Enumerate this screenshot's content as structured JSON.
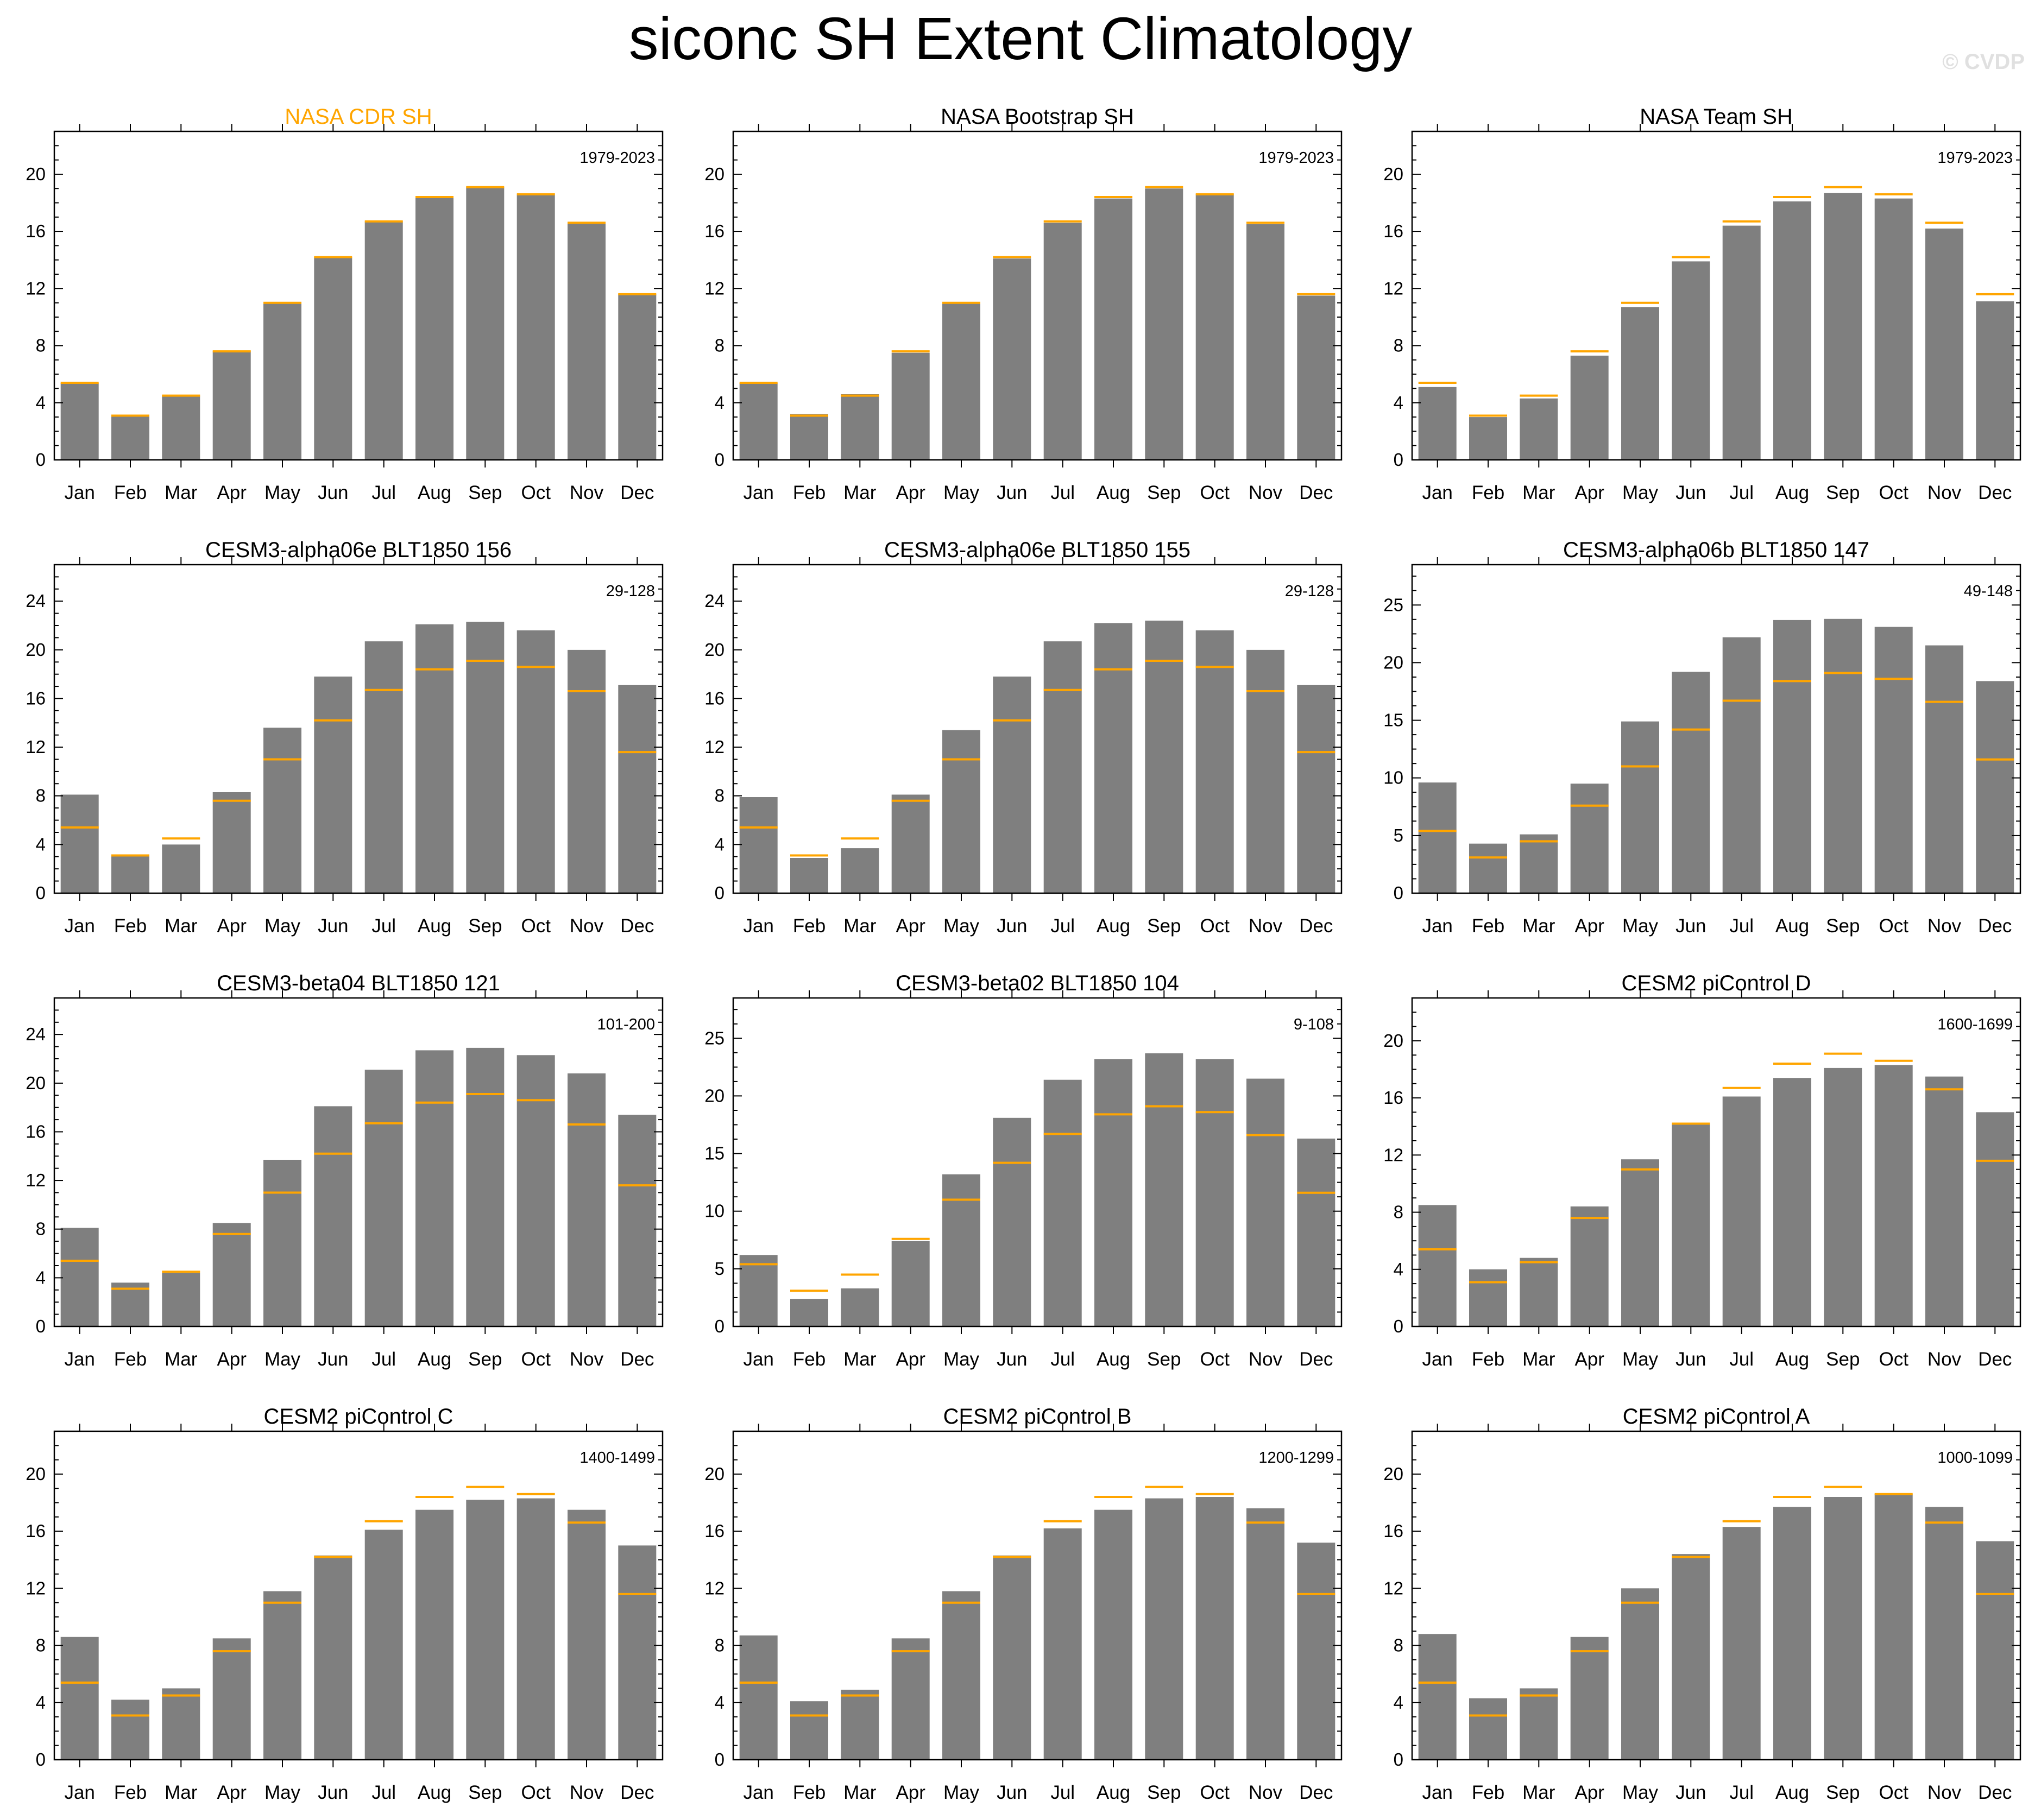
{
  "title": "siconc SH Extent Climatology",
  "watermark": "© CVDP",
  "colors": {
    "bar": "#7f7f7f",
    "reference_line": "#FFA500",
    "reference_title": "#FFA500",
    "axis": "#000000"
  },
  "chart_data": [
    {
      "type": "bar",
      "title": "NASA CDR SH",
      "is_reference": true,
      "period": "1979-2023",
      "categories": [
        "Jan",
        "Feb",
        "Mar",
        "Apr",
        "May",
        "Jun",
        "Jul",
        "Aug",
        "Sep",
        "Oct",
        "Nov",
        "Dec"
      ],
      "values": [
        5.4,
        3.1,
        4.5,
        7.6,
        11.0,
        14.2,
        16.7,
        18.4,
        19.1,
        18.6,
        16.6,
        11.6
      ],
      "ylim": [
        0,
        23
      ],
      "yticks": [
        0,
        4,
        8,
        12,
        16,
        20
      ]
    },
    {
      "type": "bar",
      "title": "NASA Bootstrap SH",
      "period": "1979-2023",
      "categories": [
        "Jan",
        "Feb",
        "Mar",
        "Apr",
        "May",
        "Jun",
        "Jul",
        "Aug",
        "Sep",
        "Oct",
        "Nov",
        "Dec"
      ],
      "values": [
        5.4,
        3.2,
        4.6,
        7.5,
        11.0,
        14.1,
        16.6,
        18.3,
        19.0,
        18.6,
        16.5,
        11.5
      ],
      "ylim": [
        0,
        23
      ],
      "yticks": [
        0,
        4,
        8,
        12,
        16,
        20
      ]
    },
    {
      "type": "bar",
      "title": "NASA Team SH",
      "period": "1979-2023",
      "categories": [
        "Jan",
        "Feb",
        "Mar",
        "Apr",
        "May",
        "Jun",
        "Jul",
        "Aug",
        "Sep",
        "Oct",
        "Nov",
        "Dec"
      ],
      "values": [
        5.1,
        3.0,
        4.3,
        7.3,
        10.7,
        13.9,
        16.4,
        18.1,
        18.7,
        18.3,
        16.2,
        11.1
      ],
      "ylim": [
        0,
        23
      ],
      "yticks": [
        0,
        4,
        8,
        12,
        16,
        20
      ]
    },
    {
      "type": "bar",
      "title": "CESM3-alpha06e BLT1850 156",
      "period": "29-128",
      "categories": [
        "Jan",
        "Feb",
        "Mar",
        "Apr",
        "May",
        "Jun",
        "Jul",
        "Aug",
        "Sep",
        "Oct",
        "Nov",
        "Dec"
      ],
      "values": [
        8.1,
        3.1,
        4.0,
        8.3,
        13.6,
        17.8,
        20.7,
        22.1,
        22.3,
        21.6,
        20.0,
        17.1
      ],
      "ylim": [
        0,
        27
      ],
      "yticks": [
        0,
        4,
        8,
        12,
        16,
        20,
        24
      ]
    },
    {
      "type": "bar",
      "title": "CESM3-alpha06e BLT1850 155",
      "period": "29-128",
      "categories": [
        "Jan",
        "Feb",
        "Mar",
        "Apr",
        "May",
        "Jun",
        "Jul",
        "Aug",
        "Sep",
        "Oct",
        "Nov",
        "Dec"
      ],
      "values": [
        7.9,
        2.9,
        3.7,
        8.1,
        13.4,
        17.8,
        20.7,
        22.2,
        22.4,
        21.6,
        20.0,
        17.1
      ],
      "ylim": [
        0,
        27
      ],
      "yticks": [
        0,
        4,
        8,
        12,
        16,
        20,
        24
      ]
    },
    {
      "type": "bar",
      "title": "CESM3-alpha06b BLT1850 147",
      "period": "49-148",
      "categories": [
        "Jan",
        "Feb",
        "Mar",
        "Apr",
        "May",
        "Jun",
        "Jul",
        "Aug",
        "Sep",
        "Oct",
        "Nov",
        "Dec"
      ],
      "values": [
        9.6,
        4.3,
        5.1,
        9.5,
        14.9,
        19.2,
        22.2,
        23.7,
        23.8,
        23.1,
        21.5,
        18.4
      ],
      "ylim": [
        0,
        28.5
      ],
      "yticks": [
        0,
        5,
        10,
        15,
        20,
        25
      ]
    },
    {
      "type": "bar",
      "title": "CESM3-beta04 BLT1850 121",
      "period": "101-200",
      "categories": [
        "Jan",
        "Feb",
        "Mar",
        "Apr",
        "May",
        "Jun",
        "Jul",
        "Aug",
        "Sep",
        "Oct",
        "Nov",
        "Dec"
      ],
      "values": [
        8.1,
        3.6,
        4.4,
        8.5,
        13.7,
        18.1,
        21.1,
        22.7,
        22.9,
        22.3,
        20.8,
        17.4
      ],
      "ylim": [
        0,
        27
      ],
      "yticks": [
        0,
        4,
        8,
        12,
        16,
        20,
        24
      ]
    },
    {
      "type": "bar",
      "title": "CESM3-beta02 BLT1850 104",
      "period": "9-108",
      "categories": [
        "Jan",
        "Feb",
        "Mar",
        "Apr",
        "May",
        "Jun",
        "Jul",
        "Aug",
        "Sep",
        "Oct",
        "Nov",
        "Dec"
      ],
      "values": [
        6.2,
        2.4,
        3.3,
        7.4,
        13.2,
        18.1,
        21.4,
        23.2,
        23.7,
        23.2,
        21.5,
        16.3
      ],
      "ylim": [
        0,
        28.5
      ],
      "yticks": [
        0,
        5,
        10,
        15,
        20,
        25
      ]
    },
    {
      "type": "bar",
      "title": "CESM2 piControl D",
      "period": "1600-1699",
      "categories": [
        "Jan",
        "Feb",
        "Mar",
        "Apr",
        "May",
        "Jun",
        "Jul",
        "Aug",
        "Sep",
        "Oct",
        "Nov",
        "Dec"
      ],
      "values": [
        8.5,
        4.0,
        4.8,
        8.4,
        11.7,
        14.2,
        16.1,
        17.4,
        18.1,
        18.3,
        17.5,
        15.0
      ],
      "ylim": [
        0,
        23
      ],
      "yticks": [
        0,
        4,
        8,
        12,
        16,
        20
      ]
    },
    {
      "type": "bar",
      "title": "CESM2 piControl C",
      "period": "1400-1499",
      "categories": [
        "Jan",
        "Feb",
        "Mar",
        "Apr",
        "May",
        "Jun",
        "Jul",
        "Aug",
        "Sep",
        "Oct",
        "Nov",
        "Dec"
      ],
      "values": [
        8.6,
        4.2,
        5.0,
        8.5,
        11.8,
        14.3,
        16.1,
        17.5,
        18.2,
        18.3,
        17.5,
        15.0
      ],
      "ylim": [
        0,
        23
      ],
      "yticks": [
        0,
        4,
        8,
        12,
        16,
        20
      ]
    },
    {
      "type": "bar",
      "title": "CESM2 piControl B",
      "period": "1200-1299",
      "categories": [
        "Jan",
        "Feb",
        "Mar",
        "Apr",
        "May",
        "Jun",
        "Jul",
        "Aug",
        "Sep",
        "Oct",
        "Nov",
        "Dec"
      ],
      "values": [
        8.7,
        4.1,
        4.9,
        8.5,
        11.8,
        14.3,
        16.2,
        17.5,
        18.3,
        18.4,
        17.6,
        15.2
      ],
      "ylim": [
        0,
        23
      ],
      "yticks": [
        0,
        4,
        8,
        12,
        16,
        20
      ]
    },
    {
      "type": "bar",
      "title": "CESM2 piControl A",
      "period": "1000-1099",
      "categories": [
        "Jan",
        "Feb",
        "Mar",
        "Apr",
        "May",
        "Jun",
        "Jul",
        "Aug",
        "Sep",
        "Oct",
        "Nov",
        "Dec"
      ],
      "values": [
        8.8,
        4.3,
        5.0,
        8.6,
        12.0,
        14.4,
        16.3,
        17.7,
        18.4,
        18.6,
        17.7,
        15.3
      ],
      "ylim": [
        0,
        23
      ],
      "yticks": [
        0,
        4,
        8,
        12,
        16,
        20
      ]
    }
  ]
}
